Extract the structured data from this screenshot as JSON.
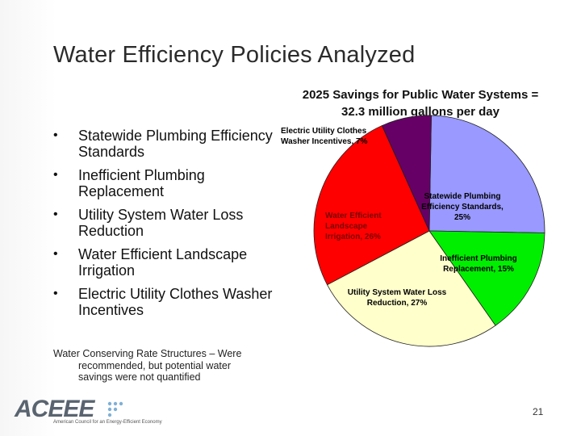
{
  "slide": {
    "title": "Water Efficiency Policies Analyzed",
    "page_number": "21"
  },
  "bullets": [
    "Statewide Plumbing Efficiency Standards",
    "Inefficient Plumbing Replacement",
    "Utility System Water Loss Reduction",
    "Water Efficient Landscape Irrigation",
    "Electric Utility Clothes Washer Incentives"
  ],
  "bullet_glyph": "•",
  "footnote": {
    "line1": "Water Conserving Rate Structures – Were",
    "line2": "recommended, but potential water",
    "line3": "savings were not quantified"
  },
  "chart_title": {
    "line1": "2025 Savings for Public Water Systems =",
    "line2": "32.3 million gallons per day"
  },
  "chart_data": {
    "type": "pie",
    "title": "2025 Savings for Public Water Systems = 32.3 million gallons per day",
    "slices": [
      {
        "name": "Statewide Plumbing Efficiency Standards",
        "value": 25,
        "color": "#9999ff",
        "label_lines": [
          "Statewide Plumbing",
          "Efficiency Standards,",
          "25%"
        ],
        "label_color": "#000000"
      },
      {
        "name": "Inefficient Plumbing Replacement",
        "value": 15,
        "color": "#00ee00",
        "label_lines": [
          "Inefficient Plumbing",
          "Replacement, 15%"
        ],
        "label_color": "#000000"
      },
      {
        "name": "Utility System Water Loss Reduction",
        "value": 27,
        "color": "#ffffcc",
        "label_lines": [
          "Utility System Water Loss",
          "Reduction, 27%"
        ],
        "label_color": "#000000"
      },
      {
        "name": "Water Efficient Landscape Irrigation",
        "value": 26,
        "color": "#ff0000",
        "label_lines": [
          "Water Efficient",
          "Landscape",
          "Irrigation, 26%"
        ],
        "label_color": "#7a0000"
      },
      {
        "name": "Electric Utility Clothes Washer Incentives",
        "value": 7,
        "color": "#660066",
        "label_lines": [
          "Electric Utility Clothes",
          "Washer Incentives, 7%"
        ],
        "label_color": "#000000"
      }
    ]
  },
  "logo": {
    "text": "ACEEE",
    "tagline": "American Council for an Energy-Efficient Economy",
    "color": "#5a6470",
    "accent": "#7fb0d6"
  }
}
